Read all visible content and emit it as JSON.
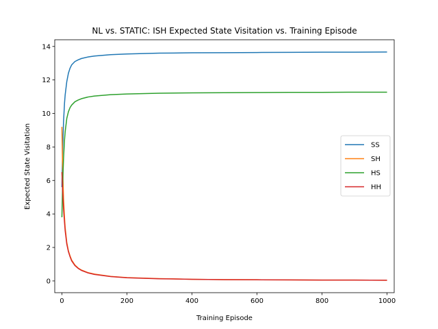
{
  "chart_data": {
    "type": "line",
    "title": "NL vs. STATIC: ISH Expected State Visitation vs. Training Episode",
    "xlabel": "Training Episode",
    "ylabel": "Expected State Visitation",
    "xlim": [
      -22,
      1022
    ],
    "ylim": [
      -0.7,
      14.4
    ],
    "xticks": [
      0,
      200,
      400,
      600,
      800,
      1000
    ],
    "yticks": [
      0,
      2,
      4,
      6,
      8,
      10,
      12,
      14
    ],
    "grid": false,
    "legend_position": "center-right",
    "x": [
      0,
      2,
      5,
      8,
      10,
      15,
      20,
      25,
      30,
      40,
      50,
      60,
      80,
      100,
      150,
      200,
      300,
      400,
      500,
      600,
      700,
      800,
      900,
      1000
    ],
    "series": [
      {
        "name": "SS",
        "color": "#1f77b4",
        "values": [
          5.6,
          7.6,
          9.5,
          10.6,
          11.1,
          11.9,
          12.4,
          12.7,
          12.9,
          13.1,
          13.2,
          13.28,
          13.37,
          13.43,
          13.51,
          13.55,
          13.6,
          13.62,
          13.63,
          13.64,
          13.65,
          13.66,
          13.66,
          13.67
        ]
      },
      {
        "name": "SH",
        "color": "#ff7f0e",
        "values": [
          9.2,
          6.9,
          4.9,
          3.8,
          3.2,
          2.3,
          1.8,
          1.5,
          1.25,
          0.95,
          0.77,
          0.65,
          0.5,
          0.41,
          0.27,
          0.2,
          0.14,
          0.1,
          0.08,
          0.07,
          0.06,
          0.05,
          0.05,
          0.04
        ]
      },
      {
        "name": "HS",
        "color": "#2ca02c",
        "values": [
          3.8,
          5.6,
          7.3,
          8.4,
          8.9,
          9.7,
          10.1,
          10.35,
          10.5,
          10.7,
          10.8,
          10.88,
          10.98,
          11.04,
          11.12,
          11.16,
          11.21,
          11.23,
          11.24,
          11.25,
          11.26,
          11.26,
          11.27,
          11.27
        ]
      },
      {
        "name": "HH",
        "color": "#d62728",
        "values": [
          6.5,
          5.5,
          4.3,
          3.5,
          3.0,
          2.2,
          1.75,
          1.45,
          1.2,
          0.92,
          0.75,
          0.63,
          0.48,
          0.39,
          0.26,
          0.19,
          0.13,
          0.1,
          0.08,
          0.07,
          0.06,
          0.05,
          0.05,
          0.04
        ]
      }
    ]
  }
}
